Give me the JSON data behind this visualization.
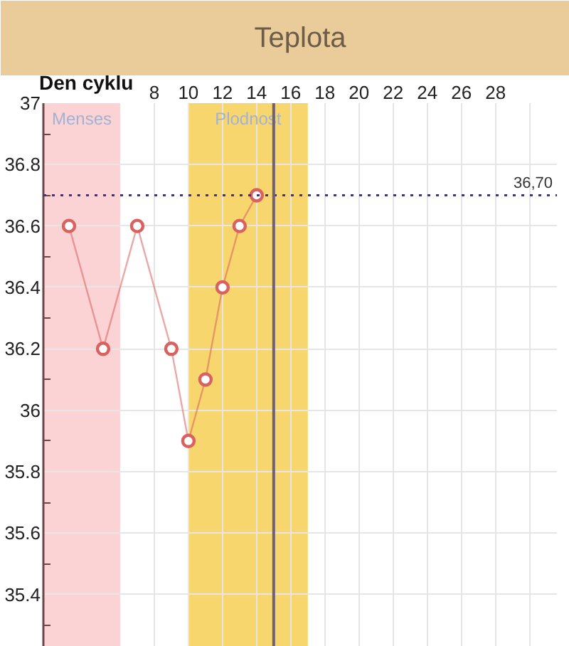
{
  "chart_data": {
    "type": "line",
    "title": "Teplota",
    "xlabel": "Den cyklu",
    "x": [
      3,
      5,
      7,
      9,
      10,
      11,
      12,
      13,
      14
    ],
    "series": [
      {
        "color": "#d9615f",
        "values": [
          36.6,
          36.2,
          36.6,
          36.2,
          35.9,
          36.1,
          36.4,
          36.6,
          36.7
        ]
      }
    ],
    "xlim": [
      1.5,
      31.6
    ],
    "xticks": [
      8,
      10,
      12,
      14,
      16,
      18,
      20,
      22,
      24,
      26,
      28,
      {
        "value": 30,
        "label": null
      }
    ],
    "ylim": [
      35.23,
      37
    ],
    "yticks": [
      35.4,
      35.6,
      35.8,
      36,
      36.2,
      36.4,
      36.6,
      36.8,
      37
    ],
    "grid": true,
    "marker": "circle",
    "line_style": "solid",
    "ref_lines": [
      {
        "axis": "y",
        "value": 36.7,
        "label": "36,70",
        "color": "#3b2fa0",
        "line_style": "dotted"
      },
      {
        "axis": "x",
        "value": 15,
        "color": "#6e6079"
      }
    ],
    "bands": [
      {
        "axis": "x",
        "from": 1.5,
        "to": 6,
        "label": "Menses",
        "color": "#fcd3d5"
      },
      {
        "axis": "x",
        "from": 10,
        "to": 17,
        "label": "Plodnost",
        "color": "#f7d76d"
      }
    ]
  }
}
